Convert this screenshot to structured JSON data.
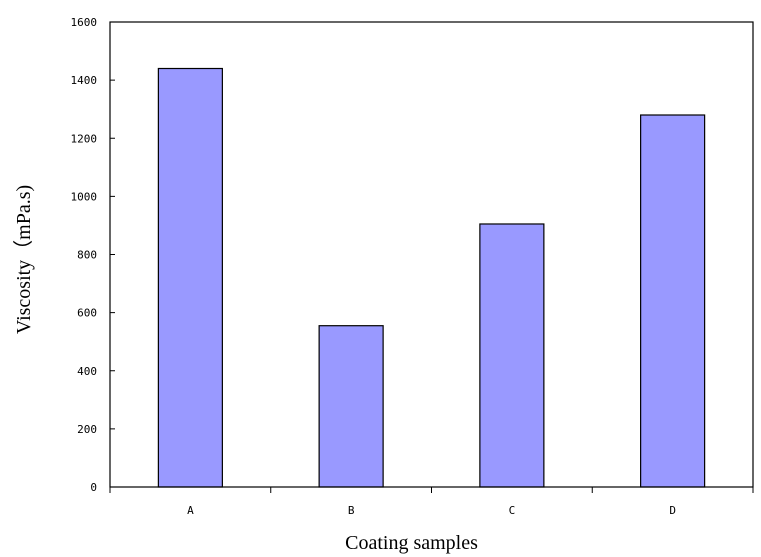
{
  "chart_data": {
    "type": "bar",
    "categories": [
      "A",
      "B",
      "C",
      "D"
    ],
    "values": [
      1440,
      555,
      905,
      1280
    ],
    "xlabel": "Coating samples",
    "ylabel": "Viscosity（mPa.s)",
    "ylim": [
      0,
      1600
    ],
    "yticks": [
      "0",
      "200",
      "400",
      "600",
      "800",
      "1000",
      "1200",
      "1400",
      "1600"
    ],
    "bar_color": "#9999ff",
    "bar_edge_color": "#000000",
    "grid": false,
    "legend": "none"
  }
}
